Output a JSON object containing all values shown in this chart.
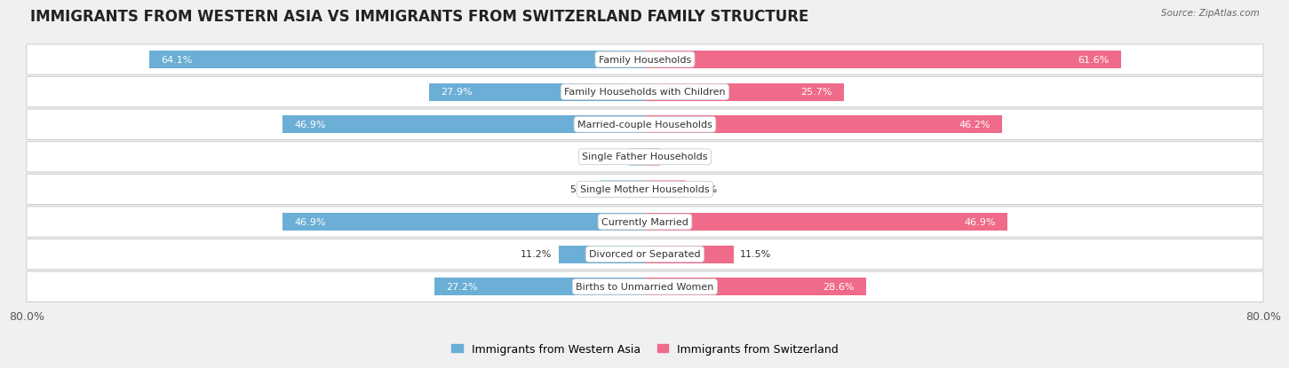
{
  "title": "IMMIGRANTS FROM WESTERN ASIA VS IMMIGRANTS FROM SWITZERLAND FAMILY STRUCTURE",
  "source": "Source: ZipAtlas.com",
  "categories": [
    "Family Households",
    "Family Households with Children",
    "Married-couple Households",
    "Single Father Households",
    "Single Mother Households",
    "Currently Married",
    "Divorced or Separated",
    "Births to Unmarried Women"
  ],
  "western_asia": [
    64.1,
    27.9,
    46.9,
    2.1,
    5.7,
    46.9,
    11.2,
    27.2
  ],
  "switzerland": [
    61.6,
    25.7,
    46.2,
    2.0,
    5.3,
    46.9,
    11.5,
    28.6
  ],
  "color_western_asia": "#6BAED6",
  "color_switzerland": "#F06B8A",
  "color_western_asia_light": "#AED4EA",
  "color_switzerland_light": "#F5A8BC",
  "axis_max": 80.0,
  "axis_label": "80.0%",
  "bg_color": "#f0f0f0",
  "row_bg_color": "#ffffff",
  "row_bg_alt": "#f5f5f5",
  "legend_label_1": "Immigrants from Western Asia",
  "legend_label_2": "Immigrants from Switzerland",
  "title_fontsize": 12,
  "label_fontsize": 8,
  "value_fontsize": 8,
  "tick_fontsize": 9,
  "bar_height": 0.55
}
